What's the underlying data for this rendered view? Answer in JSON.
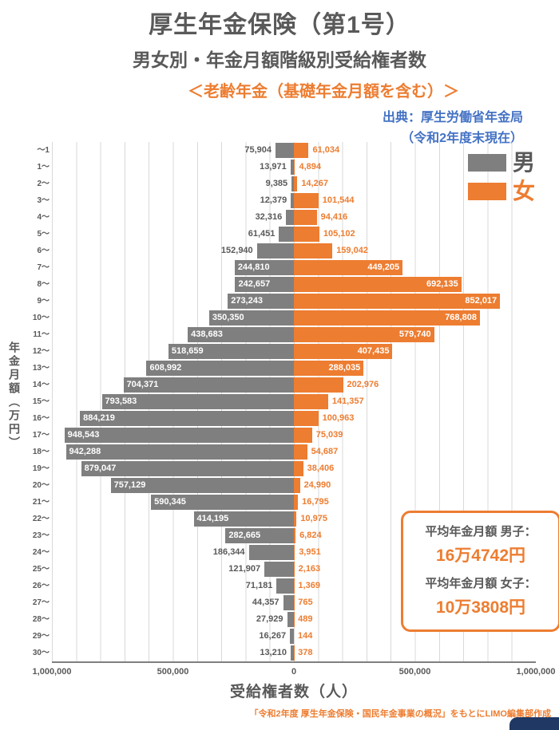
{
  "header": {
    "line1": "厚生年金保険（第1号）",
    "line2": "男女別・年金月額階級別受給権者数",
    "line3": "＜老齢年金（基礎年金月額を含む）＞",
    "line4": "出典：厚生労働省年金局",
    "line5": "（令和2年度末現在）"
  },
  "legend": {
    "male": "男",
    "female": "女"
  },
  "summary": {
    "male_label": "平均年金月額 男子：",
    "male_value": "16万4742円",
    "female_label": "平均年金月額 女子：",
    "female_value": "10万3808円"
  },
  "footer": {
    "credit": "「令和2年度 厚生年金保険・国民年金事業の概況」をもとにLIMO編集部作成"
  },
  "colors": {
    "male": "#7F7F7F",
    "female": "#ED7D31",
    "accent_orange": "#ED7D31",
    "accent_blue": "#4472C4",
    "title_gray": "#595959",
    "grid": "#D9D9D9",
    "badge_navy": "#1F3864"
  },
  "chart_data": {
    "type": "bar",
    "orientation": "butterfly",
    "title": "厚生年金保険（第1号） 男女別・年金月額階級別受給権者数",
    "xlabel": "受給権者数（人）",
    "ylabel": "年金月額（万円）",
    "xlim": [
      -1000000,
      1000000
    ],
    "x_ticks": [
      "1,000,000",
      "500,000",
      "0",
      "500,000",
      "1,000,000"
    ],
    "grid": true,
    "grid_interval": 100000,
    "inside_label_threshold": 230000,
    "categories": [
      "～1",
      "1～",
      "2～",
      "3～",
      "4～",
      "5～",
      "6～",
      "7～",
      "8～",
      "9～",
      "10～",
      "11～",
      "12～",
      "13～",
      "14～",
      "15～",
      "16～",
      "17～",
      "18～",
      "19～",
      "20～",
      "21～",
      "22～",
      "23～",
      "24～",
      "25～",
      "26～",
      "27～",
      "28～",
      "29～",
      "30～"
    ],
    "series": [
      {
        "name": "男",
        "color": "#7F7F7F",
        "values": [
          75904,
          13971,
          9385,
          12379,
          32316,
          61451,
          152940,
          244810,
          242657,
          273243,
          350350,
          438683,
          518659,
          608992,
          704371,
          793583,
          884219,
          948543,
          942288,
          879047,
          757129,
          590345,
          414195,
          282665,
          186344,
          121907,
          71181,
          44357,
          27929,
          16267,
          13210
        ]
      },
      {
        "name": "女",
        "color": "#ED7D31",
        "values": [
          61034,
          4894,
          14267,
          101544,
          94416,
          105102,
          159042,
          449205,
          692135,
          852017,
          768808,
          579740,
          407435,
          288035,
          202976,
          141357,
          100963,
          75039,
          54687,
          38406,
          24990,
          16795,
          10975,
          6824,
          3951,
          2163,
          1369,
          765,
          489,
          144,
          378
        ]
      }
    ]
  }
}
